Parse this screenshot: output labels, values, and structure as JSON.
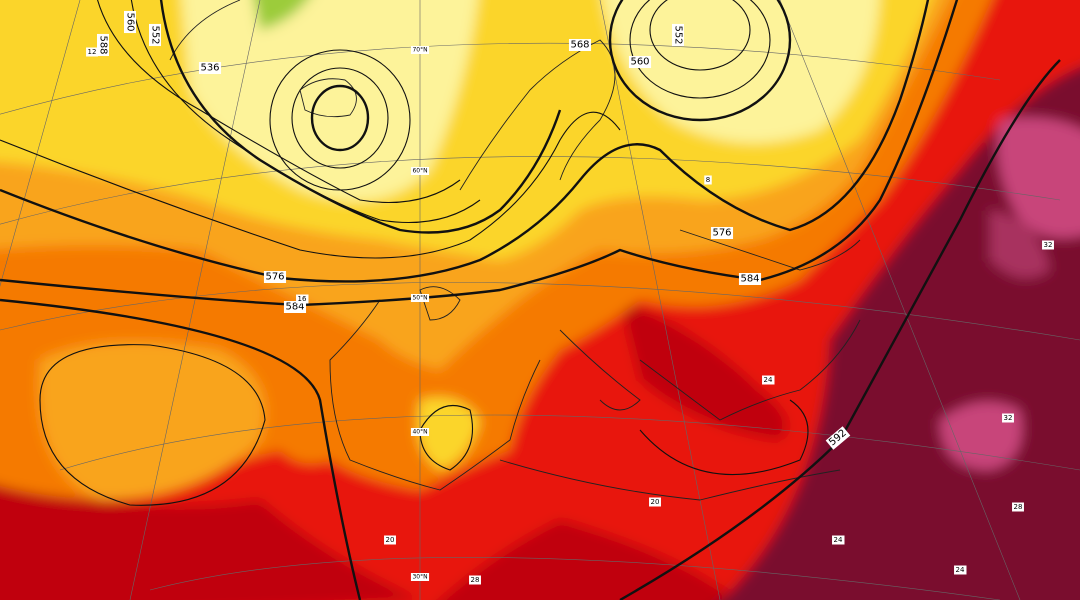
{
  "map": {
    "height_labels": [
      "588",
      "560",
      "552",
      "536",
      "576",
      "584",
      "568",
      "552",
      "560",
      "576",
      "584",
      "592"
    ],
    "temperature_labels": [
      "12",
      "16",
      "8",
      "20",
      "20",
      "24",
      "24",
      "24",
      "28",
      "28",
      "32",
      "32"
    ],
    "latitude_labels": [
      "70°N",
      "60°N",
      "50°N",
      "40°N",
      "30°N"
    ]
  }
}
